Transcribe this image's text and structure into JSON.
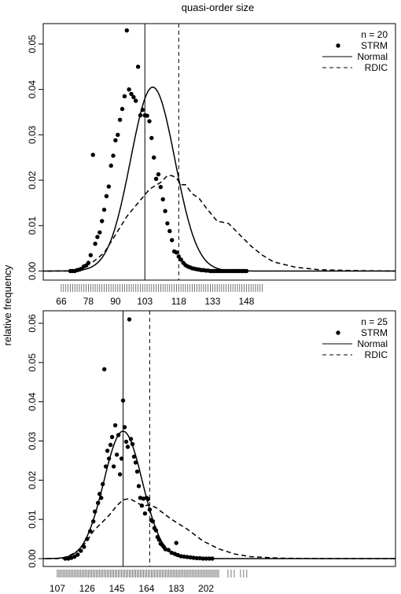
{
  "title": "quasi-order size",
  "ylabel": "relative frequency",
  "chart_data": [
    {
      "type": "scatter",
      "legend": {
        "title": "n = 20",
        "position": "top-right",
        "entries": [
          "STRM",
          "Normal",
          "RDIC"
        ]
      },
      "xlim": [
        58,
        214
      ],
      "ylim": [
        -0.002,
        0.0545
      ],
      "xticks": [
        66,
        78,
        90,
        103,
        118,
        133,
        148
      ],
      "yticks": [
        0.0,
        0.01,
        0.02,
        0.03,
        0.04,
        0.05
      ],
      "ytick_labels": [
        "0.00",
        "0.01",
        "0.02",
        "0.03",
        "0.04",
        "0.05"
      ],
      "vlines": {
        "solid": 103,
        "dashed": 118
      },
      "normal": {
        "mean": 106.5,
        "sd": 9.8,
        "scale": 0.0405
      },
      "rdic_curve": {
        "x": [
          60,
          70,
          75,
          80,
          85,
          90,
          95,
          100,
          105,
          110,
          113,
          115,
          117,
          119,
          121,
          124,
          127,
          130,
          135,
          140,
          145,
          150,
          155,
          160,
          170,
          180,
          195,
          214
        ],
        "y": [
          0.0,
          0.0,
          0.0005,
          0.002,
          0.004,
          0.008,
          0.012,
          0.015,
          0.018,
          0.0195,
          0.021,
          0.021,
          0.0205,
          0.019,
          0.019,
          0.017,
          0.016,
          0.014,
          0.011,
          0.0105,
          0.008,
          0.0055,
          0.0035,
          0.002,
          0.0008,
          0.0003,
          0.0001,
          0.0
        ]
      },
      "strm_points": {
        "x": [
          70,
          71,
          72,
          73,
          74,
          75,
          76,
          77,
          78,
          79,
          80,
          81,
          82,
          83,
          84,
          85,
          86,
          87,
          88,
          89,
          90,
          91,
          92,
          93,
          94,
          95,
          96,
          97,
          98,
          99,
          100,
          101,
          102,
          103,
          104,
          105,
          106,
          107,
          108,
          109,
          110,
          111,
          112,
          113,
          114,
          115,
          116,
          117,
          118,
          119,
          120,
          121,
          122,
          123,
          124,
          125,
          126,
          127,
          128,
          129,
          130,
          131,
          132,
          133,
          134,
          135,
          136,
          137,
          138,
          139,
          140,
          141,
          142,
          143,
          144,
          145,
          146,
          147,
          148
        ],
        "y": [
          0.0,
          0.0,
          0.0,
          0.0002,
          0.0003,
          0.0005,
          0.001,
          0.0012,
          0.0018,
          0.0035,
          0.0256,
          0.006,
          0.0075,
          0.0085,
          0.011,
          0.0135,
          0.0165,
          0.0186,
          0.0232,
          0.0254,
          0.0288,
          0.03,
          0.0333,
          0.0357,
          0.0385,
          0.053,
          0.04,
          0.039,
          0.0383,
          0.0375,
          0.045,
          0.0343,
          0.0355,
          0.0343,
          0.0342,
          0.033,
          0.0293,
          0.025,
          0.0203,
          0.0213,
          0.0185,
          0.0158,
          0.0132,
          0.0105,
          0.0088,
          0.0068,
          0.0043,
          0.0041,
          0.0032,
          0.0025,
          0.0018,
          0.0013,
          0.001,
          0.0008,
          0.0006,
          0.0005,
          0.0004,
          0.0003,
          0.0002,
          0.0002,
          0.0001,
          0.0001,
          0.0,
          0.0,
          0.0,
          0.0,
          0.0,
          0.0,
          0.0,
          0.0,
          0.0,
          0.0,
          0.0,
          0.0,
          0.0,
          0.0,
          0.0,
          0.0,
          0.0
        ]
      },
      "rug": [
        66,
        67,
        68,
        69,
        70,
        71,
        72,
        73,
        74,
        75,
        76,
        77,
        78,
        79,
        80,
        81,
        82,
        83,
        84,
        85,
        86,
        87,
        88,
        89,
        90,
        91,
        92,
        93,
        94,
        95,
        96,
        97,
        98,
        99,
        100,
        101,
        102,
        103,
        104,
        105,
        106,
        107,
        108,
        109,
        110,
        111,
        112,
        113,
        114,
        115,
        116,
        117,
        118,
        119,
        120,
        121,
        122,
        123,
        124,
        125,
        126,
        127,
        128,
        129,
        130,
        131,
        132,
        133,
        134,
        135,
        136,
        137,
        138,
        139,
        140,
        141,
        142,
        143,
        144,
        145,
        146,
        147,
        148,
        149,
        150,
        151,
        152,
        153,
        154,
        155
      ]
    },
    {
      "type": "scatter",
      "legend": {
        "title": "n = 25",
        "position": "top-right",
        "entries": [
          "STRM",
          "Normal",
          "RDIC"
        ]
      },
      "xlim": [
        98,
        323
      ],
      "ylim": [
        -0.002,
        0.0632
      ],
      "xticks": [
        107,
        126,
        145,
        164,
        183,
        202
      ],
      "yticks": [
        0.0,
        0.01,
        0.02,
        0.03,
        0.04,
        0.05,
        0.06
      ],
      "ytick_labels": [
        "0.00",
        "0.01",
        "0.02",
        "0.03",
        "0.04",
        "0.05",
        "0.06"
      ],
      "vlines": {
        "solid": 149,
        "dashed": 166
      },
      "normal": {
        "mean": 149,
        "sd": 12.3,
        "scale": 0.0325
      },
      "rdic_curve": {
        "x": [
          100,
          110,
          115,
          120,
          125,
          130,
          135,
          140,
          145,
          149,
          153,
          157,
          160,
          163,
          166,
          170,
          175,
          180,
          190,
          200,
          210,
          220,
          230,
          250,
          280,
          323
        ],
        "y": [
          0.0,
          0.0,
          0.0008,
          0.002,
          0.004,
          0.007,
          0.009,
          0.011,
          0.0135,
          0.015,
          0.0153,
          0.0145,
          0.0138,
          0.0135,
          0.0137,
          0.013,
          0.0115,
          0.01,
          0.0075,
          0.0045,
          0.0025,
          0.0012,
          0.0005,
          0.0001,
          0.0,
          0.0
        ]
      },
      "strm_points": {
        "x": [
          112,
          114,
          116,
          118,
          120,
          122,
          124,
          126,
          128,
          130,
          131,
          133,
          134,
          135,
          136,
          137,
          138,
          139,
          140,
          141,
          142,
          143,
          144,
          145,
          146,
          147,
          148,
          149,
          150,
          151,
          152,
          153,
          154,
          155,
          156,
          157,
          158,
          159,
          160,
          161,
          162,
          163,
          164,
          165,
          166,
          167,
          168,
          169,
          170,
          171,
          172,
          173,
          174,
          175,
          176,
          178,
          180,
          182,
          183,
          184,
          186,
          188,
          190,
          192,
          194,
          196,
          198,
          200,
          202,
          204,
          206
        ],
        "y": [
          0.0,
          0.0,
          0.0002,
          0.0005,
          0.001,
          0.002,
          0.003,
          0.005,
          0.007,
          0.0095,
          0.012,
          0.0142,
          0.0165,
          0.0155,
          0.019,
          0.0483,
          0.0235,
          0.0275,
          0.0255,
          0.029,
          0.031,
          0.0235,
          0.034,
          0.0265,
          0.0315,
          0.0215,
          0.0255,
          0.0403,
          0.0335,
          0.0298,
          0.0285,
          0.061,
          0.0305,
          0.0292,
          0.026,
          0.0245,
          0.0222,
          0.0185,
          0.0155,
          0.0135,
          0.0153,
          0.0115,
          0.0155,
          0.0152,
          0.0125,
          0.0098,
          0.0095,
          0.0078,
          0.0072,
          0.0055,
          0.0048,
          0.0038,
          0.0035,
          0.003,
          0.0024,
          0.0022,
          0.0015,
          0.0012,
          0.004,
          0.0009,
          0.0006,
          0.0005,
          0.0004,
          0.0003,
          0.0002,
          0.0001,
          0.0001,
          0.0,
          0.0,
          0.0,
          0.0
        ]
      },
      "rug": [
        107,
        108,
        109,
        110,
        111,
        112,
        113,
        114,
        115,
        116,
        117,
        118,
        119,
        120,
        121,
        122,
        123,
        124,
        125,
        126,
        127,
        128,
        129,
        130,
        131,
        132,
        133,
        134,
        135,
        136,
        137,
        138,
        139,
        140,
        141,
        142,
        143,
        144,
        145,
        146,
        147,
        148,
        149,
        150,
        151,
        152,
        153,
        154,
        155,
        156,
        157,
        158,
        159,
        160,
        161,
        162,
        163,
        164,
        165,
        166,
        167,
        168,
        169,
        170,
        171,
        172,
        173,
        174,
        175,
        176,
        177,
        178,
        179,
        180,
        181,
        182,
        183,
        184,
        185,
        186,
        187,
        188,
        189,
        190,
        191,
        192,
        193,
        194,
        195,
        196,
        197,
        198,
        199,
        200,
        201,
        202,
        203,
        204,
        205,
        206,
        207,
        208,
        209,
        210,
        216,
        218,
        220,
        224,
        226,
        228
      ]
    }
  ]
}
